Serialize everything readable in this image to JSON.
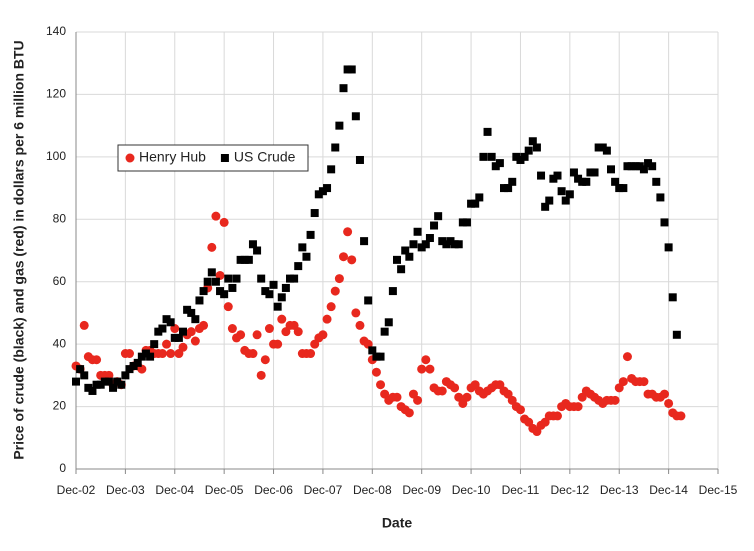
{
  "chart_data": {
    "type": "scatter",
    "xlabel": "Date",
    "ylabel": "Price of crude (black) and gas (red) in dollars per 6 million BTU",
    "x": [
      "2002-12",
      "2003-01",
      "2003-02",
      "2003-03",
      "2003-04",
      "2003-05",
      "2003-06",
      "2003-07",
      "2003-08",
      "2003-09",
      "2003-10",
      "2003-11",
      "2003-12",
      "2004-01",
      "2004-02",
      "2004-03",
      "2004-04",
      "2004-05",
      "2004-06",
      "2004-07",
      "2004-08",
      "2004-09",
      "2004-10",
      "2004-11",
      "2004-12",
      "2005-01",
      "2005-02",
      "2005-03",
      "2005-04",
      "2005-05",
      "2005-06",
      "2005-07",
      "2005-08",
      "2005-09",
      "2005-10",
      "2005-11",
      "2005-12",
      "2006-01",
      "2006-02",
      "2006-03",
      "2006-04",
      "2006-05",
      "2006-06",
      "2006-07",
      "2006-08",
      "2006-09",
      "2006-10",
      "2006-11",
      "2006-12",
      "2007-01",
      "2007-02",
      "2007-03",
      "2007-04",
      "2007-05",
      "2007-06",
      "2007-07",
      "2007-08",
      "2007-09",
      "2007-10",
      "2007-11",
      "2007-12",
      "2008-01",
      "2008-02",
      "2008-03",
      "2008-04",
      "2008-05",
      "2008-06",
      "2008-07",
      "2008-08",
      "2008-09",
      "2008-10",
      "2008-11",
      "2008-12",
      "2009-01",
      "2009-02",
      "2009-03",
      "2009-04",
      "2009-05",
      "2009-06",
      "2009-07",
      "2009-08",
      "2009-09",
      "2009-10",
      "2009-11",
      "2009-12",
      "2010-01",
      "2010-02",
      "2010-03",
      "2010-04",
      "2010-05",
      "2010-06",
      "2010-07",
      "2010-08",
      "2010-09",
      "2010-10",
      "2010-11",
      "2010-12",
      "2011-01",
      "2011-02",
      "2011-03",
      "2011-04",
      "2011-05",
      "2011-06",
      "2011-07",
      "2011-08",
      "2011-09",
      "2011-10",
      "2011-11",
      "2011-12",
      "2012-01",
      "2012-02",
      "2012-03",
      "2012-04",
      "2012-05",
      "2012-06",
      "2012-07",
      "2012-08",
      "2012-09",
      "2012-10",
      "2012-11",
      "2012-12",
      "2013-01",
      "2013-02",
      "2013-03",
      "2013-04",
      "2013-05",
      "2013-06",
      "2013-07",
      "2013-08",
      "2013-09",
      "2013-10",
      "2013-11",
      "2013-12",
      "2014-01",
      "2014-02",
      "2014-03",
      "2014-04",
      "2014-05",
      "2014-06",
      "2014-07",
      "2014-08",
      "2014-09",
      "2014-10",
      "2014-11",
      "2014-12",
      "2015-01",
      "2015-02",
      "2015-03"
    ],
    "series": [
      {
        "name": "Henry Hub",
        "color": "#e8281e",
        "marker": "circle",
        "values": [
          33,
          32,
          46,
          36,
          35,
          35,
          30,
          30,
          30,
          27,
          28,
          27,
          37,
          37,
          33,
          33,
          32,
          38,
          38,
          37,
          37,
          37,
          40,
          37,
          45,
          37,
          39,
          43,
          44,
          41,
          45,
          46,
          58,
          71,
          81,
          62,
          79,
          52,
          45,
          42,
          43,
          38,
          37,
          37,
          43,
          30,
          35,
          45,
          40,
          40,
          48,
          44,
          46,
          46,
          44,
          37,
          37,
          37,
          40,
          42,
          43,
          48,
          52,
          57,
          61,
          68,
          76,
          67,
          50,
          46,
          41,
          40,
          35,
          31,
          27,
          24,
          22,
          23,
          23,
          20,
          19,
          18,
          24,
          22,
          32,
          35,
          32,
          26,
          25,
          25,
          28,
          27,
          26,
          23,
          21,
          23,
          26,
          27,
          25,
          24,
          25,
          26,
          27,
          27,
          25,
          24,
          22,
          20,
          19,
          16,
          15,
          13,
          12,
          14,
          15,
          17,
          17,
          17,
          20,
          21,
          20,
          20,
          20,
          23,
          25,
          24,
          23,
          22,
          21,
          22,
          22,
          22,
          26,
          28,
          36,
          29,
          28,
          28,
          28,
          24,
          24,
          23,
          23,
          24,
          21,
          18,
          17,
          17
        ]
      },
      {
        "name": "US Crude",
        "color": "#000000",
        "marker": "square",
        "values": [
          28,
          32,
          30,
          26,
          25,
          27,
          27,
          28,
          28,
          26,
          28,
          27,
          30,
          32,
          33,
          34,
          36,
          37,
          36,
          40,
          44,
          45,
          48,
          47,
          42,
          42,
          44,
          51,
          50,
          48,
          54,
          57,
          60,
          63,
          60,
          57,
          56,
          61,
          58,
          61,
          67,
          67,
          67,
          72,
          70,
          61,
          57,
          56,
          59,
          52,
          55,
          58,
          61,
          61,
          65,
          71,
          68,
          75,
          82,
          88,
          89,
          90,
          96,
          103,
          110,
          122,
          128,
          128,
          113,
          99,
          73,
          54,
          38,
          36,
          36,
          44,
          47,
          57,
          67,
          64,
          70,
          68,
          72,
          76,
          71,
          72,
          74,
          78,
          81,
          73,
          72,
          73,
          72,
          72,
          79,
          79,
          85,
          85,
          87,
          100,
          108,
          100,
          97,
          98,
          90,
          90,
          92,
          100,
          99,
          100,
          102,
          105,
          103,
          94,
          84,
          86,
          93,
          94,
          89,
          86,
          88,
          95,
          93,
          92,
          92,
          95,
          95,
          103,
          103,
          102,
          96,
          92,
          90,
          90,
          97,
          97,
          97,
          97,
          96,
          98,
          97,
          92,
          87,
          79,
          71,
          55,
          43,
          null
        ]
      }
    ],
    "xlim": [
      "2002-12",
      "2015-12"
    ],
    "xticks": [
      {
        "value": "2002-12",
        "label": "Dec-02"
      },
      {
        "value": "2003-12",
        "label": "Dec-03"
      },
      {
        "value": "2004-12",
        "label": "Dec-04"
      },
      {
        "value": "2005-12",
        "label": "Dec-05"
      },
      {
        "value": "2006-12",
        "label": "Dec-06"
      },
      {
        "value": "2007-12",
        "label": "Dec-07"
      },
      {
        "value": "2008-12",
        "label": "Dec-08"
      },
      {
        "value": "2009-12",
        "label": "Dec-09"
      },
      {
        "value": "2010-12",
        "label": "Dec-10"
      },
      {
        "value": "2011-12",
        "label": "Dec-11"
      },
      {
        "value": "2012-12",
        "label": "Dec-12"
      },
      {
        "value": "2013-12",
        "label": "Dec-13"
      },
      {
        "value": "2014-12",
        "label": "Dec-14"
      },
      {
        "value": "2015-12",
        "label": "Dec-15"
      }
    ],
    "ylim": [
      0,
      140
    ],
    "yticks": [
      0,
      20,
      40,
      60,
      80,
      100,
      120,
      140
    ],
    "grid": true,
    "legend": "upper left"
  }
}
